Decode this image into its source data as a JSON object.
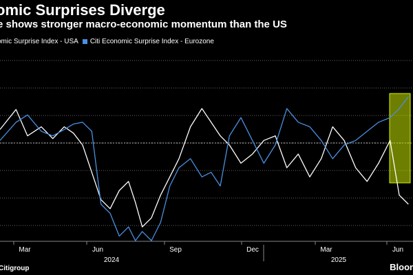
{
  "chart_data": {
    "type": "line",
    "title": "omic Surprises Diverge",
    "subtitle": "e shows stronger macro-economic momentum than the US",
    "xlabel": "",
    "ylabel": "",
    "legend_placement": "top-left",
    "grid": "horizontal dotted",
    "x_ticks": [
      "Mar",
      "Jun",
      "Sep",
      "Dec",
      "Mar",
      "Jun"
    ],
    "year_labels": [
      "2024",
      "2025"
    ],
    "ylim": [
      -1,
      1
    ],
    "series": [
      {
        "name": "omic Surprise Index - USA",
        "color": "#ffffff",
        "x": [
          0,
          0.7,
          1.2,
          1.8,
          2.3,
          2.8,
          3.2,
          3.6,
          4.0,
          4.4,
          4.8,
          5.2,
          5.6,
          5.9,
          6.2,
          6.6,
          7.0,
          7.4,
          7.8,
          8.3,
          8.8,
          9.2,
          9.6,
          10.0,
          10.5,
          11.0,
          11.5,
          12.0,
          12.5,
          13.0,
          13.5,
          14.0,
          14.5,
          15.0,
          15.5,
          16.0,
          16.5,
          17.0,
          17.4,
          17.8
        ],
        "values": [
          0.22,
          0.44,
          0.15,
          0.25,
          0.12,
          0.25,
          0.18,
          0.05,
          -0.25,
          -0.55,
          -0.65,
          -0.45,
          -0.35,
          -0.58,
          -0.85,
          -0.75,
          -0.5,
          -0.3,
          -0.1,
          0.25,
          0.45,
          0.3,
          0.15,
          0.05,
          -0.15,
          -0.05,
          0.1,
          0.15,
          -0.2,
          -0.05,
          -0.3,
          -0.1,
          0.25,
          0.1,
          -0.2,
          -0.35,
          -0.15,
          0.1,
          -0.5,
          -0.6
        ]
      },
      {
        "name": "Citi Economic Surprise Index - Eurozone",
        "color": "#4a90e2",
        "x": [
          0,
          0.7,
          1.2,
          1.8,
          2.3,
          2.8,
          3.2,
          3.6,
          4.0,
          4.4,
          4.8,
          5.2,
          5.6,
          5.9,
          6.2,
          6.6,
          7.0,
          7.4,
          7.8,
          8.3,
          8.8,
          9.2,
          9.6,
          10.0,
          10.5,
          11.0,
          11.5,
          12.0,
          12.5,
          13.0,
          13.5,
          14.0,
          14.5,
          15.0,
          15.5,
          16.0,
          16.5,
          17.0,
          17.4,
          17.8
        ],
        "values": [
          0.1,
          0.3,
          0.38,
          0.2,
          0.15,
          0.22,
          0.28,
          0.3,
          0.2,
          -0.6,
          -0.7,
          -0.95,
          -0.85,
          -1.0,
          -0.9,
          -1.0,
          -0.8,
          -0.4,
          -0.2,
          -0.1,
          -0.3,
          -0.25,
          -0.4,
          0.15,
          0.35,
          0.1,
          -0.15,
          0.05,
          0.45,
          0.3,
          0.25,
          0.1,
          -0.1,
          0.05,
          0.1,
          0.2,
          0.3,
          0.35,
          0.45,
          0.58
        ]
      }
    ]
  },
  "source": "Citigroup",
  "brand": "Bloon"
}
